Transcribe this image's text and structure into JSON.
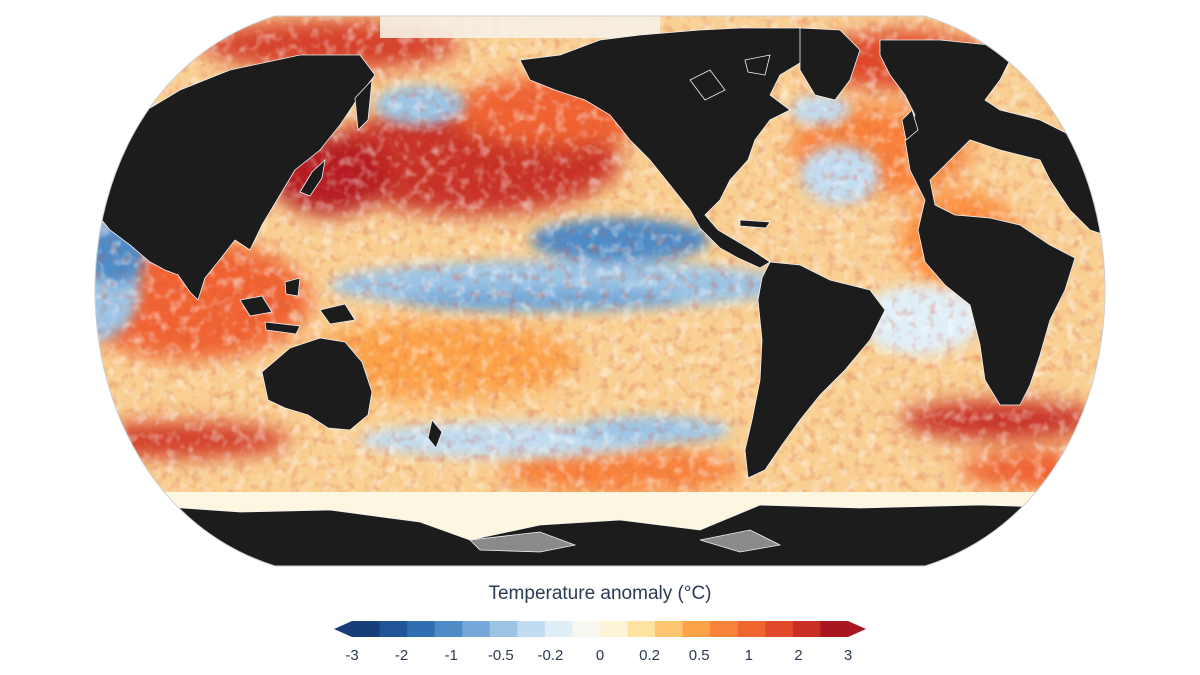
{
  "legend": {
    "title": "Temperature anomaly (°C)",
    "tick_labels": [
      "-3",
      "-2",
      "-1",
      "-0.5",
      "-0.2",
      "0",
      "0.2",
      "0.5",
      "1",
      "2",
      "3"
    ],
    "colors": [
      "#163d78",
      "#1f5597",
      "#2f6eb0",
      "#4f8bc6",
      "#75a8d8",
      "#9cc4e5",
      "#c1dbf0",
      "#e0eef8",
      "#f8f8f3",
      "#fdf3d6",
      "#fde3a0",
      "#fdc56f",
      "#fca34a",
      "#f8823a",
      "#f06430",
      "#e04a2a",
      "#c83026",
      "#a8171f"
    ],
    "under_color": "#163d78",
    "over_color": "#a8171f"
  },
  "map": {
    "projection": "Robinson",
    "land_color": "#1c1c1c",
    "ice_color": "#8a8a8a",
    "ocean_background": "#f9cf92"
  }
}
